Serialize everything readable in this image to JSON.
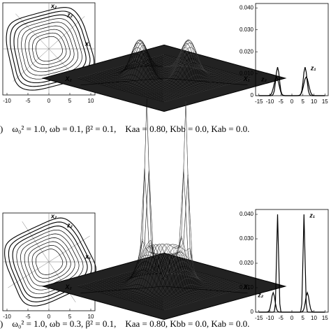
{
  "chart_data": [
    {
      "type": "contour",
      "xlim": [
        -11,
        11
      ],
      "xticks": [
        -10,
        -5,
        0,
        5,
        10
      ],
      "labels": {
        "x1": "x₁",
        "x2": "x₂",
        "z1": "z₁",
        "z2": "z₂"
      }
    },
    {
      "type": "surface",
      "labels": {
        "x2": "X₂",
        "x1": "X₁"
      }
    },
    {
      "type": "line",
      "xlim": [
        -16.5,
        16.5
      ],
      "ylim": [
        0,
        0.042
      ],
      "xticks": [
        -15,
        -10,
        -5,
        0,
        5,
        10,
        15
      ],
      "yticks": [
        0,
        {
          "value": 0.01,
          "label": "0.010"
        },
        {
          "value": 0.02,
          "label": "0.020"
        },
        {
          "value": 0.03,
          "label": "0.030"
        },
        {
          "value": 0.04,
          "label": "0.040"
        }
      ],
      "x": [
        -15,
        -14.5,
        -14,
        -13.5,
        -13,
        -12.5,
        -12,
        -11.5,
        -11,
        -10.5,
        -10,
        -9.5,
        -9,
        -8.5,
        -8,
        -7.5,
        -7,
        -6.5,
        -6,
        -5.5,
        -5,
        -4.5,
        -4,
        -3.5,
        -3,
        -2.5,
        -2,
        -1.5,
        -1,
        -0.5,
        0,
        0.5,
        1,
        1.5,
        2,
        2.5,
        3,
        3.5,
        4,
        4.5,
        5,
        5.5,
        6,
        6.5,
        7,
        7.5,
        8,
        8.5,
        9,
        9.5,
        10,
        10.5,
        11,
        11.5,
        12,
        12.5,
        13,
        13.5,
        14,
        14.5,
        15
      ],
      "series": [
        {
          "name": "z₁",
          "color": "#000000",
          "values": [
            0,
            0,
            0,
            0,
            0,
            0,
            0,
            0,
            0,
            0,
            0,
            0,
            0.0001,
            0.0006,
            0.0022,
            0.006,
            0.0107,
            0.013,
            0.0107,
            0.006,
            0.0022,
            0.0006,
            0.0001,
            0,
            0,
            0,
            0,
            0,
            0,
            0,
            0,
            0,
            0,
            0,
            0,
            0,
            0,
            0.0001,
            0.0006,
            0.0022,
            0.006,
            0.0107,
            0.013,
            0.0107,
            0.006,
            0.0022,
            0.0006,
            0.0001,
            0,
            0,
            0,
            0,
            0,
            0,
            0,
            0,
            0,
            0,
            0,
            0,
            0
          ]
        },
        {
          "name": "z₂",
          "color": "#000000",
          "values": [
            0,
            0,
            0,
            0,
            0,
            0,
            0,
            0,
            0,
            0.0001,
            0.0002,
            0.0006,
            0.0016,
            0.0034,
            0.0056,
            0.0077,
            0.0085,
            0.0077,
            0.0056,
            0.0034,
            0.0016,
            0.0006,
            0.0002,
            0.0001,
            0,
            0,
            0,
            0,
            0,
            0,
            0,
            0,
            0,
            0,
            0,
            0,
            0.0001,
            0.0002,
            0.0006,
            0.0016,
            0.0034,
            0.0056,
            0.0077,
            0.0085,
            0.0077,
            0.0056,
            0.0034,
            0.0016,
            0.0006,
            0.0002,
            0.0001,
            0,
            0,
            0,
            0,
            0,
            0,
            0,
            0,
            0,
            0
          ]
        }
      ]
    },
    {
      "type": "contour",
      "xlim": [
        -11,
        11
      ],
      "xticks": [
        -10,
        -5,
        0,
        5,
        10
      ],
      "labels": {
        "x1": "x₁",
        "x2": "x₂",
        "z1": "z₁",
        "z2": "z₂"
      }
    },
    {
      "type": "surface",
      "labels": {
        "x2": "X₂",
        "x1": "X₁"
      }
    },
    {
      "type": "line",
      "xlim": [
        -16.5,
        16.5
      ],
      "ylim": [
        0,
        0.042
      ],
      "xticks": [
        -15,
        -10,
        -5,
        0,
        5,
        10,
        15
      ],
      "yticks": [
        0,
        {
          "value": 0.01,
          "label": "0.010"
        },
        {
          "value": 0.02,
          "label": "0.020"
        },
        {
          "value": 0.03,
          "label": "0.030"
        },
        {
          "value": 0.04,
          "label": "0.040"
        }
      ],
      "x": [
        -15,
        -14.5,
        -14,
        -13.5,
        -13,
        -12.5,
        -12,
        -11.5,
        -11,
        -10.5,
        -10,
        -9.5,
        -9,
        -8.5,
        -8,
        -7.5,
        -7,
        -6.5,
        -6,
        -5.5,
        -5,
        -4.5,
        -4,
        -3.5,
        -3,
        -2.5,
        -2,
        -1.5,
        -1,
        -0.5,
        0,
        0.5,
        1,
        1.5,
        2,
        2.5,
        3,
        3.5,
        4,
        4.5,
        5,
        5.5,
        6,
        6.5,
        7,
        7.5,
        8,
        8.5,
        9,
        9.5,
        10,
        10.5,
        11,
        11.5,
        12,
        12.5,
        13,
        13.5,
        14,
        14.5,
        15
      ],
      "series": [
        {
          "name": "z₁",
          "color": "#000000",
          "values": [
            0,
            0,
            0,
            0,
            0,
            0,
            0,
            0,
            0,
            0,
            0,
            0,
            0,
            0,
            0.0002,
            0.0034,
            0.0216,
            0.04,
            0.0216,
            0.0034,
            0.0002,
            0,
            0,
            0,
            0,
            0,
            0,
            0,
            0,
            0,
            0,
            0,
            0,
            0,
            0,
            0,
            0,
            0,
            0.0002,
            0.0034,
            0.0216,
            0.04,
            0.0216,
            0.0034,
            0.0002,
            0,
            0,
            0,
            0,
            0,
            0,
            0,
            0,
            0,
            0,
            0,
            0,
            0,
            0,
            0,
            0
          ]
        },
        {
          "name": "z₂",
          "color": "#000000",
          "values": [
            0,
            0,
            0,
            0,
            0,
            0,
            0,
            0,
            0.0001,
            0.0004,
            0.0014,
            0.0037,
            0.0066,
            0.008,
            0.0066,
            0.0037,
            0.0014,
            0.0004,
            0.0001,
            0,
            0,
            0,
            0,
            0,
            0,
            0,
            0,
            0,
            0,
            0,
            0,
            0,
            0,
            0,
            0,
            0,
            0,
            0,
            0,
            0.0001,
            0.0004,
            0.0014,
            0.0037,
            0.0066,
            0.008,
            0.0066,
            0.0037,
            0.0014,
            0.0004,
            0.0001,
            0,
            0,
            0,
            0,
            0,
            0,
            0,
            0,
            0,
            0,
            0
          ]
        }
      ]
    }
  ],
  "captions": [
    ")    ω₀² = 1.0, ωb = 0.1, β² = 0.1,    Kaa = 0.80, Kbb = 0.0, Kab = 0.0.",
    ")    ω₀² = 1.0, ωb = 0.3, β² = 0.1,    Kaa = 0.80, Kbb = 0.0, Kab = 0.0."
  ]
}
